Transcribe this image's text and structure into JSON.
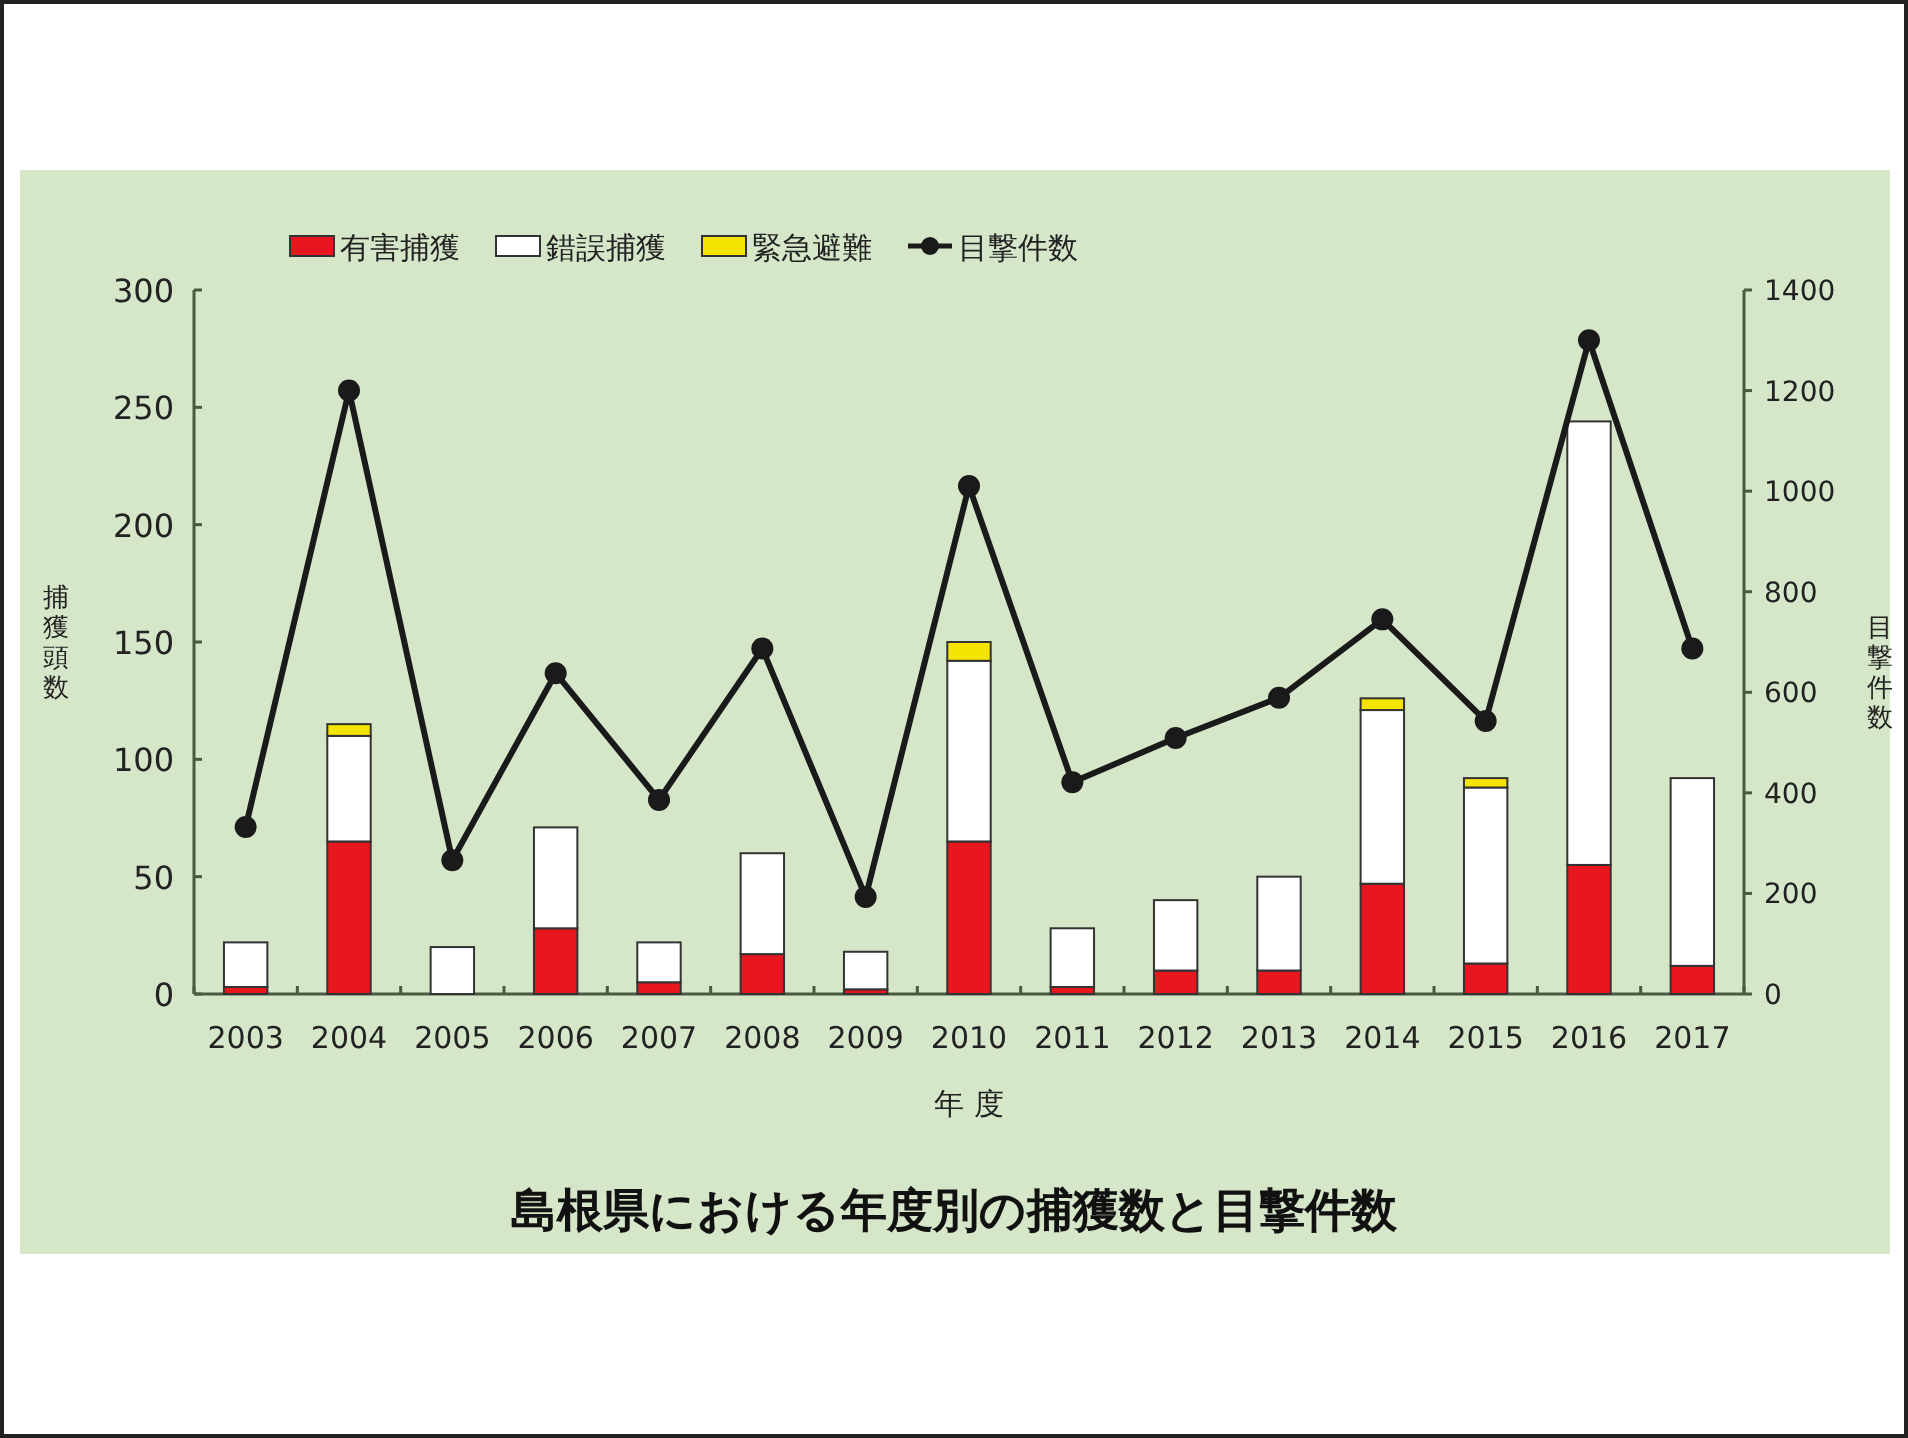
{
  "chart_data": {
    "type": "bar",
    "stacked": true,
    "title": "島根県における年度別の捕獲数と目撃件数",
    "xlabel": "年 度",
    "ylabel": "捕獲頭数",
    "y2label": "目撃件数",
    "categories": [
      "2003",
      "2004",
      "2005",
      "2006",
      "2007",
      "2008",
      "2009",
      "2010",
      "2011",
      "2012",
      "2013",
      "2014",
      "2015",
      "2016",
      "2017"
    ],
    "series": [
      {
        "name": "有害捕獲",
        "color": "#e8161e",
        "values": [
          3,
          65,
          null,
          28,
          5,
          17,
          2,
          65,
          3,
          10,
          10,
          47,
          13,
          55,
          12
        ]
      },
      {
        "name": "錯誤捕獲",
        "color": "#ffffff",
        "values": [
          19,
          45,
          20,
          43,
          17,
          43,
          16,
          77,
          25,
          30,
          40,
          74,
          75,
          189,
          80
        ]
      },
      {
        "name": "緊急避難",
        "color": "#f5e400",
        "values": [
          0,
          5,
          0,
          0,
          0,
          0,
          0,
          8,
          0,
          0,
          0,
          5,
          4,
          0,
          0
        ]
      },
      {
        "name": "目撃件数",
        "type": "line",
        "axis": "y2",
        "color": "#1a1a1a",
        "values": [
          332,
          1200,
          266,
          638,
          386,
          687,
          193,
          1010,
          421,
          509,
          589,
          745,
          543,
          1300,
          687
        ]
      }
    ],
    "ylim": [
      0,
      300
    ],
    "yticks": [
      0,
      50,
      100,
      150,
      200,
      250,
      300
    ],
    "y2lim": [
      0,
      1400
    ],
    "y2ticks": [
      0,
      200,
      400,
      600,
      800,
      1000,
      1200,
      1400
    ],
    "legend": "top",
    "marker": "circle",
    "line_style": "solid",
    "grid": false
  }
}
